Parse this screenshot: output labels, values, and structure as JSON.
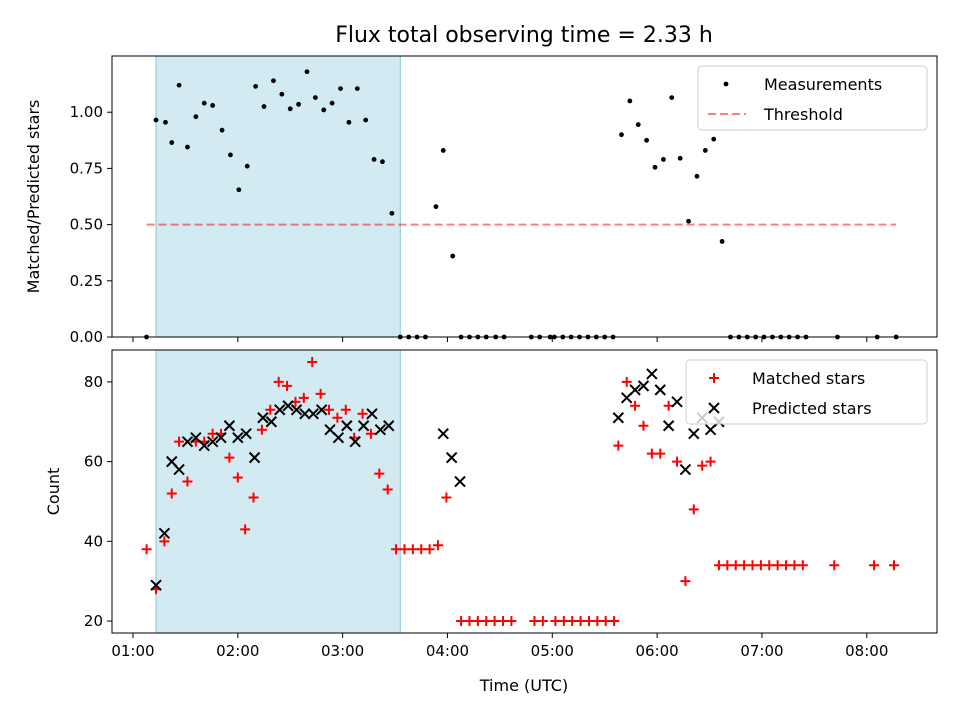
{
  "chart_data": {
    "title": "Flux total observing time = 2.33 h",
    "xlabel": "Time (UTC)",
    "x_unit": "hours UTC",
    "xlim": [
      0.8,
      8.67
    ],
    "xticks": [
      1,
      2,
      3,
      4,
      5,
      6,
      7,
      8
    ],
    "xtick_labels": [
      "01:00",
      "02:00",
      "03:00",
      "04:00",
      "05:00",
      "06:00",
      "07:00",
      "08:00"
    ],
    "shaded_interval": {
      "x0": 1.22,
      "x1": 3.55,
      "color": "#add8e6"
    },
    "panels": [
      {
        "type": "scatter",
        "ylabel": "Matched/Predicted stars",
        "ylim": [
          0,
          1.25
        ],
        "yticks": [
          0.0,
          0.25,
          0.5,
          0.75,
          1.0
        ],
        "ytick_labels": [
          "0.00",
          "0.25",
          "0.50",
          "0.75",
          "1.00"
        ],
        "legend_position": "top-right",
        "series": [
          {
            "name": "Measurements",
            "marker": "dot",
            "color": "#000000",
            "points": [
              [
                1.13,
                0.0
              ],
              [
                1.22,
                0.965
              ],
              [
                1.31,
                0.955
              ],
              [
                1.37,
                0.865
              ],
              [
                1.44,
                1.12
              ],
              [
                1.52,
                0.845
              ],
              [
                1.6,
                0.98
              ],
              [
                1.68,
                1.04
              ],
              [
                1.76,
                1.03
              ],
              [
                1.85,
                0.92
              ],
              [
                1.93,
                0.81
              ],
              [
                2.01,
                0.655
              ],
              [
                2.09,
                0.76
              ],
              [
                2.17,
                1.115
              ],
              [
                2.25,
                1.025
              ],
              [
                2.34,
                1.14
              ],
              [
                2.42,
                1.08
              ],
              [
                2.5,
                1.015
              ],
              [
                2.58,
                1.035
              ],
              [
                2.66,
                1.18
              ],
              [
                2.74,
                1.065
              ],
              [
                2.82,
                1.01
              ],
              [
                2.9,
                1.04
              ],
              [
                2.98,
                1.105
              ],
              [
                3.06,
                0.955
              ],
              [
                3.14,
                1.105
              ],
              [
                3.22,
                0.965
              ],
              [
                3.3,
                0.79
              ],
              [
                3.38,
                0.78
              ],
              [
                3.47,
                0.55
              ],
              [
                3.55,
                0.0
              ],
              [
                3.63,
                0.0
              ],
              [
                3.71,
                0.0
              ],
              [
                3.79,
                0.0
              ],
              [
                3.89,
                0.58
              ],
              [
                3.96,
                0.83
              ],
              [
                4.05,
                0.36
              ],
              [
                4.13,
                0.0
              ],
              [
                4.21,
                0.0
              ],
              [
                4.29,
                0.0
              ],
              [
                4.37,
                0.0
              ],
              [
                4.46,
                0.0
              ],
              [
                4.54,
                0.0
              ],
              [
                4.8,
                0.0
              ],
              [
                4.88,
                0.0
              ],
              [
                4.98,
                0.0
              ],
              [
                5.02,
                0.0
              ],
              [
                5.1,
                0.0
              ],
              [
                5.18,
                0.0
              ],
              [
                5.26,
                0.0
              ],
              [
                5.34,
                0.0
              ],
              [
                5.42,
                0.0
              ],
              [
                5.5,
                0.0
              ],
              [
                5.58,
                0.0
              ],
              [
                5.66,
                0.9
              ],
              [
                5.74,
                1.05
              ],
              [
                5.82,
                0.945
              ],
              [
                5.9,
                0.875
              ],
              [
                5.98,
                0.755
              ],
              [
                6.06,
                0.79
              ],
              [
                6.14,
                1.065
              ],
              [
                6.22,
                0.795
              ],
              [
                6.3,
                0.515
              ],
              [
                6.38,
                0.715
              ],
              [
                6.46,
                0.83
              ],
              [
                6.54,
                0.88
              ],
              [
                6.62,
                0.425
              ],
              [
                6.7,
                0.0
              ],
              [
                6.78,
                0.0
              ],
              [
                6.86,
                0.0
              ],
              [
                6.94,
                0.0
              ],
              [
                7.02,
                0.0
              ],
              [
                7.1,
                0.0
              ],
              [
                7.18,
                0.0
              ],
              [
                7.26,
                0.0
              ],
              [
                7.34,
                0.0
              ],
              [
                7.42,
                0.0
              ],
              [
                7.72,
                0.0
              ],
              [
                8.1,
                0.0
              ],
              [
                8.28,
                0.0
              ]
            ]
          },
          {
            "name": "Threshold",
            "type": "line",
            "style": "dashed",
            "color": "#ff0000",
            "alpha": 0.5,
            "points": [
              [
                1.13,
                0.5
              ],
              [
                8.28,
                0.5
              ]
            ]
          }
        ]
      },
      {
        "type": "scatter",
        "ylabel": "Count",
        "ylim": [
          17,
          88
        ],
        "yticks": [
          20,
          40,
          60,
          80
        ],
        "ytick_labels": [
          "20",
          "40",
          "60",
          "80"
        ],
        "legend_position": "top-right",
        "series": [
          {
            "name": "Matched stars",
            "marker": "plus",
            "color": "#ff0000",
            "points": [
              [
                1.13,
                38
              ],
              [
                1.22,
                28
              ],
              [
                1.3,
                40
              ],
              [
                1.37,
                52
              ],
              [
                1.44,
                65
              ],
              [
                1.52,
                55
              ],
              [
                1.6,
                65
              ],
              [
                1.68,
                65
              ],
              [
                1.76,
                67
              ],
              [
                1.84,
                67
              ],
              [
                1.92,
                61
              ],
              [
                2.0,
                56
              ],
              [
                2.07,
                43
              ],
              [
                2.15,
                51
              ],
              [
                2.23,
                68
              ],
              [
                2.31,
                73
              ],
              [
                2.39,
                80
              ],
              [
                2.47,
                79
              ],
              [
                2.55,
                75
              ],
              [
                2.63,
                76
              ],
              [
                2.71,
                85
              ],
              [
                2.79,
                77
              ],
              [
                2.87,
                73
              ],
              [
                2.95,
                71
              ],
              [
                3.03,
                73
              ],
              [
                3.11,
                66
              ],
              [
                3.19,
                72
              ],
              [
                3.27,
                67
              ],
              [
                3.35,
                57
              ],
              [
                3.43,
                53
              ],
              [
                3.51,
                38
              ],
              [
                3.59,
                38
              ],
              [
                3.67,
                38
              ],
              [
                3.75,
                38
              ],
              [
                3.83,
                38
              ],
              [
                3.91,
                39
              ],
              [
                3.99,
                51
              ],
              [
                4.13,
                20
              ],
              [
                4.21,
                20
              ],
              [
                4.29,
                20
              ],
              [
                4.37,
                20
              ],
              [
                4.45,
                20
              ],
              [
                4.53,
                20
              ],
              [
                4.61,
                20
              ],
              [
                4.83,
                20
              ],
              [
                4.91,
                20
              ],
              [
                5.03,
                20
              ],
              [
                5.11,
                20
              ],
              [
                5.19,
                20
              ],
              [
                5.27,
                20
              ],
              [
                5.35,
                20
              ],
              [
                5.43,
                20
              ],
              [
                5.51,
                20
              ],
              [
                5.59,
                20
              ],
              [
                5.63,
                64
              ],
              [
                5.71,
                80
              ],
              [
                5.79,
                74
              ],
              [
                5.87,
                69
              ],
              [
                5.95,
                62
              ],
              [
                6.03,
                62
              ],
              [
                6.11,
                74
              ],
              [
                6.19,
                60
              ],
              [
                6.27,
                30
              ],
              [
                6.35,
                48
              ],
              [
                6.43,
                59
              ],
              [
                6.51,
                60
              ],
              [
                6.59,
                34
              ],
              [
                6.67,
                34
              ],
              [
                6.75,
                34
              ],
              [
                6.83,
                34
              ],
              [
                6.91,
                34
              ],
              [
                6.99,
                34
              ],
              [
                7.07,
                34
              ],
              [
                7.15,
                34
              ],
              [
                7.23,
                34
              ],
              [
                7.31,
                34
              ],
              [
                7.39,
                34
              ],
              [
                7.69,
                34
              ],
              [
                8.07,
                34
              ],
              [
                8.26,
                34
              ]
            ]
          },
          {
            "name": "Predicted stars",
            "marker": "x",
            "color": "#000000",
            "points": [
              [
                1.22,
                29
              ],
              [
                1.3,
                42
              ],
              [
                1.37,
                60
              ],
              [
                1.44,
                58
              ],
              [
                1.52,
                65
              ],
              [
                1.6,
                66
              ],
              [
                1.68,
                64
              ],
              [
                1.76,
                65
              ],
              [
                1.84,
                66
              ],
              [
                1.92,
                69
              ],
              [
                2.0,
                66
              ],
              [
                2.08,
                67
              ],
              [
                2.16,
                61
              ],
              [
                2.24,
                71
              ],
              [
                2.32,
                70
              ],
              [
                2.4,
                73
              ],
              [
                2.48,
                74
              ],
              [
                2.56,
                73
              ],
              [
                2.64,
                72
              ],
              [
                2.72,
                72
              ],
              [
                2.8,
                73
              ],
              [
                2.88,
                68
              ],
              [
                2.96,
                66
              ],
              [
                3.04,
                69
              ],
              [
                3.12,
                65
              ],
              [
                3.2,
                69
              ],
              [
                3.28,
                72
              ],
              [
                3.36,
                68
              ],
              [
                3.44,
                69
              ],
              [
                3.96,
                67
              ],
              [
                4.04,
                61
              ],
              [
                4.12,
                55
              ],
              [
                5.63,
                71
              ],
              [
                5.71,
                76
              ],
              [
                5.79,
                78
              ],
              [
                5.87,
                79
              ],
              [
                5.95,
                82
              ],
              [
                6.03,
                78
              ],
              [
                6.11,
                69
              ],
              [
                6.19,
                75
              ],
              [
                6.27,
                58
              ],
              [
                6.35,
                67
              ],
              [
                6.43,
                71
              ],
              [
                6.51,
                68
              ],
              [
                6.59,
                70
              ]
            ]
          }
        ]
      }
    ]
  }
}
